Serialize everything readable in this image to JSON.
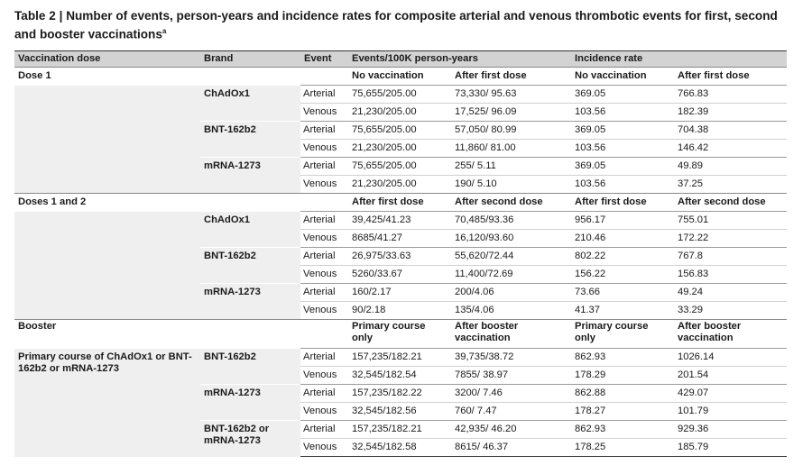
{
  "title": "Table 2 | Number of events, person-years and incidence rates for composite arterial and venous thrombotic events for first, second and booster vaccinations",
  "title_sup": "a",
  "header": [
    "Vaccination dose",
    "Brand",
    "Event",
    "Events/100K person-years",
    "",
    "Incidence rate",
    ""
  ],
  "dose1": {
    "label": "Dose 1",
    "subheads": [
      "No vaccination",
      "After first dose",
      "No vaccination",
      "After first dose"
    ],
    "groups": [
      {
        "brand": "ChAdOx1",
        "rows": [
          [
            "Arterial",
            "75,655/205.00",
            "73,330/ 95.63",
            "369.05",
            "766.83"
          ],
          [
            "Venous",
            "21,230/205.00",
            "17,525/ 96.09",
            "103.56",
            "182.39"
          ]
        ]
      },
      {
        "brand": "BNT-162b2",
        "rows": [
          [
            "Arterial",
            "75,655/205.00",
            "57,050/ 80.99",
            "369.05",
            "704.38"
          ],
          [
            "Venous",
            "21,230/205.00",
            "11,860/ 81.00",
            "103.56",
            "146.42"
          ]
        ]
      },
      {
        "brand": "mRNA-1273",
        "rows": [
          [
            "Arterial",
            "75,655/205.00",
            "255/ 5.11",
            "369.05",
            "49.89"
          ],
          [
            "Venous",
            "21,230/205.00",
            "190/ 5.10",
            "103.56",
            "37.25"
          ]
        ]
      }
    ]
  },
  "dose12": {
    "label": "Doses 1 and 2",
    "subheads": [
      "After first dose",
      "After second dose",
      "After first dose",
      "After second dose"
    ],
    "groups": [
      {
        "brand": "ChAdOx1",
        "rows": [
          [
            "Arterial",
            "39,425/41.23",
            "70,485/93.36",
            "956.17",
            "755.01"
          ],
          [
            "Venous",
            "8685/41.27",
            "16,120/93.60",
            "210.46",
            "172.22"
          ]
        ]
      },
      {
        "brand": "BNT-162b2",
        "rows": [
          [
            "Arterial",
            "26,975/33.63",
            "55,620/72.44",
            "802.22",
            "767.8"
          ],
          [
            "Venous",
            "5260/33.67",
            "11,400/72.69",
            "156.22",
            "156.83"
          ]
        ]
      },
      {
        "brand": "mRNA-1273",
        "rows": [
          [
            "Arterial",
            "160/2.17",
            "200/4.06",
            "73.66",
            "49.24"
          ],
          [
            "Venous",
            "90/2.18",
            "135/4.06",
            "41.37",
            "33.29"
          ]
        ]
      }
    ]
  },
  "booster": {
    "label": "Booster",
    "subheads": [
      "Primary course only",
      "After booster vaccination",
      "Primary course only",
      "After booster vaccination"
    ],
    "primary_label": "Primary course of ChAdOx1 or BNT-162b2 or mRNA-1273",
    "groups": [
      {
        "brand": "BNT-162b2",
        "rows": [
          [
            "Arterial",
            "157,235/182.21",
            "39,735/38.72",
            "862.93",
            "1026.14"
          ],
          [
            "Venous",
            "32,545/182.54",
            "7855/ 38.97",
            "178.29",
            "201.54"
          ]
        ]
      },
      {
        "brand": "mRNA-1273",
        "rows": [
          [
            "Arterial",
            "157,235/182.22",
            "3200/ 7.46",
            "862.88",
            "429.07"
          ],
          [
            "Venous",
            "32,545/182.56",
            "760/ 7.47",
            "178.27",
            "101.79"
          ]
        ]
      },
      {
        "brand": "BNT-162b2 or mRNA-1273",
        "rows": [
          [
            "Arterial",
            "157,235/182.21",
            "42,935/ 46.20",
            "862.93",
            "929.36"
          ],
          [
            "Venous",
            "32,545/182.58",
            "8615/ 46.37",
            "178.25",
            "185.79"
          ]
        ]
      }
    ]
  }
}
